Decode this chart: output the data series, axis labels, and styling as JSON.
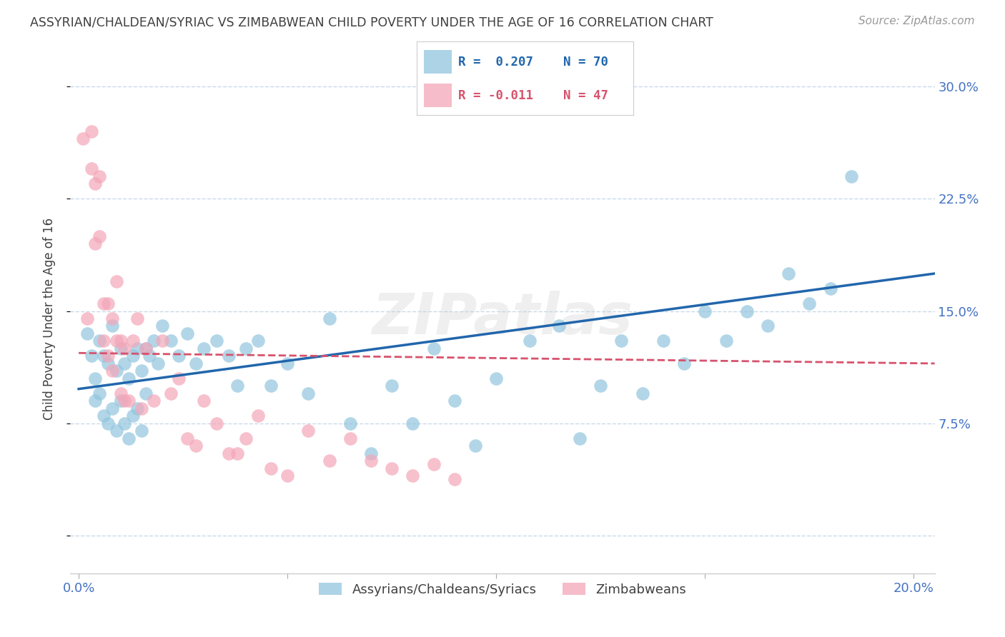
{
  "title": "ASSYRIAN/CHALDEAN/SYRIAC VS ZIMBABWEAN CHILD POVERTY UNDER THE AGE OF 16 CORRELATION CHART",
  "source": "Source: ZipAtlas.com",
  "ylabel": "Child Poverty Under the Age of 16",
  "xlabel_ticks": [
    "0.0%",
    "",
    "",
    "",
    "20.0%"
  ],
  "xlabel_vals": [
    0.0,
    0.05,
    0.1,
    0.15,
    0.2
  ],
  "ylabel_ticks": [
    "30.0%",
    "22.5%",
    "15.0%",
    "7.5%",
    ""
  ],
  "ylabel_vals": [
    0.3,
    0.225,
    0.15,
    0.075,
    0.0
  ],
  "xlim": [
    -0.002,
    0.205
  ],
  "ylim": [
    -0.025,
    0.315
  ],
  "blue_label": "Assyrians/Chaldeans/Syriacs",
  "pink_label": "Zimbabweans",
  "blue_R": "0.207",
  "blue_N": "70",
  "pink_R": "-0.011",
  "pink_N": "47",
  "blue_color": "#92c5de",
  "pink_color": "#f4a6b8",
  "blue_line_color": "#2166ac",
  "pink_line_color": "#d6536d",
  "axis_tick_color": "#4472c4",
  "grid_color": "#c8d9ea",
  "background_color": "#ffffff",
  "title_color": "#404040",
  "source_color": "#999999",
  "blue_trend_x0": 0.0,
  "blue_trend_x1": 0.205,
  "blue_trend_y0": 0.098,
  "blue_trend_y1": 0.175,
  "pink_trend_x0": 0.0,
  "pink_trend_x1": 0.205,
  "pink_trend_y0": 0.122,
  "pink_trend_y1": 0.115,
  "watermark": "ZIPatlas",
  "blue_scatter_x": [
    0.002,
    0.003,
    0.004,
    0.004,
    0.005,
    0.005,
    0.006,
    0.006,
    0.007,
    0.007,
    0.008,
    0.008,
    0.009,
    0.009,
    0.01,
    0.01,
    0.011,
    0.011,
    0.012,
    0.012,
    0.013,
    0.013,
    0.014,
    0.014,
    0.015,
    0.015,
    0.016,
    0.016,
    0.017,
    0.018,
    0.019,
    0.02,
    0.022,
    0.024,
    0.026,
    0.028,
    0.03,
    0.033,
    0.036,
    0.038,
    0.04,
    0.043,
    0.046,
    0.05,
    0.055,
    0.06,
    0.065,
    0.07,
    0.075,
    0.08,
    0.085,
    0.09,
    0.095,
    0.1,
    0.108,
    0.115,
    0.12,
    0.125,
    0.13,
    0.135,
    0.14,
    0.145,
    0.15,
    0.155,
    0.16,
    0.165,
    0.17,
    0.175,
    0.18,
    0.185
  ],
  "blue_scatter_y": [
    0.135,
    0.12,
    0.105,
    0.09,
    0.13,
    0.095,
    0.12,
    0.08,
    0.115,
    0.075,
    0.14,
    0.085,
    0.11,
    0.07,
    0.125,
    0.09,
    0.115,
    0.075,
    0.105,
    0.065,
    0.12,
    0.08,
    0.125,
    0.085,
    0.11,
    0.07,
    0.125,
    0.095,
    0.12,
    0.13,
    0.115,
    0.14,
    0.13,
    0.12,
    0.135,
    0.115,
    0.125,
    0.13,
    0.12,
    0.1,
    0.125,
    0.13,
    0.1,
    0.115,
    0.095,
    0.145,
    0.075,
    0.055,
    0.1,
    0.075,
    0.125,
    0.09,
    0.06,
    0.105,
    0.13,
    0.14,
    0.065,
    0.1,
    0.13,
    0.095,
    0.13,
    0.115,
    0.15,
    0.13,
    0.15,
    0.14,
    0.175,
    0.155,
    0.165,
    0.24
  ],
  "pink_scatter_x": [
    0.001,
    0.002,
    0.003,
    0.003,
    0.004,
    0.004,
    0.005,
    0.005,
    0.006,
    0.006,
    0.007,
    0.007,
    0.008,
    0.008,
    0.009,
    0.009,
    0.01,
    0.01,
    0.011,
    0.011,
    0.012,
    0.013,
    0.014,
    0.015,
    0.016,
    0.018,
    0.02,
    0.022,
    0.024,
    0.026,
    0.028,
    0.03,
    0.033,
    0.036,
    0.038,
    0.04,
    0.043,
    0.046,
    0.05,
    0.055,
    0.06,
    0.065,
    0.07,
    0.075,
    0.08,
    0.085,
    0.09
  ],
  "pink_scatter_y": [
    0.265,
    0.145,
    0.27,
    0.245,
    0.235,
    0.195,
    0.24,
    0.2,
    0.155,
    0.13,
    0.155,
    0.12,
    0.145,
    0.11,
    0.17,
    0.13,
    0.13,
    0.095,
    0.125,
    0.09,
    0.09,
    0.13,
    0.145,
    0.085,
    0.125,
    0.09,
    0.13,
    0.095,
    0.105,
    0.065,
    0.06,
    0.09,
    0.075,
    0.055,
    0.055,
    0.065,
    0.08,
    0.045,
    0.04,
    0.07,
    0.05,
    0.065,
    0.05,
    0.045,
    0.04,
    0.048,
    0.038
  ]
}
